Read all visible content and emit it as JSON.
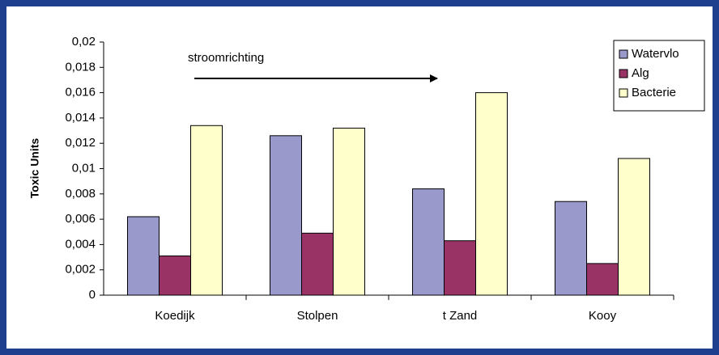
{
  "chart_data": {
    "type": "bar",
    "y_label": "Toxic Units",
    "annotation": "stroomrichting",
    "categories": [
      "Koedijk",
      "Stolpen",
      "t Zand",
      "Kooy"
    ],
    "series": [
      {
        "name": "Watervlo",
        "color": "#9999cc",
        "values": [
          0.0062,
          0.0126,
          0.0084,
          0.0074
        ]
      },
      {
        "name": "Alg",
        "color": "#993366",
        "values": [
          0.0031,
          0.0049,
          0.0043,
          0.0025
        ]
      },
      {
        "name": "Bacterie",
        "color": "#ffffcc",
        "values": [
          0.0134,
          0.0132,
          0.016,
          0.0108
        ]
      }
    ],
    "ylim": [
      0,
      0.02
    ],
    "yticks": [
      0,
      {
        "value": 0.002,
        "label": "0,002"
      },
      {
        "value": 0.004,
        "label": "0,004"
      },
      {
        "value": 0.006,
        "label": "0,006"
      },
      {
        "value": 0.008,
        "label": "0,008"
      },
      {
        "value": 0.01,
        "label": "0,01"
      },
      {
        "value": 0.012,
        "label": "0,012"
      },
      {
        "value": 0.014,
        "label": "0,014"
      },
      {
        "value": 0.016,
        "label": "0,016"
      },
      {
        "value": 0.018,
        "label": "0,018"
      },
      {
        "value": 0.02,
        "label": "0,02"
      }
    ],
    "grid": false,
    "legend": "top-right"
  }
}
